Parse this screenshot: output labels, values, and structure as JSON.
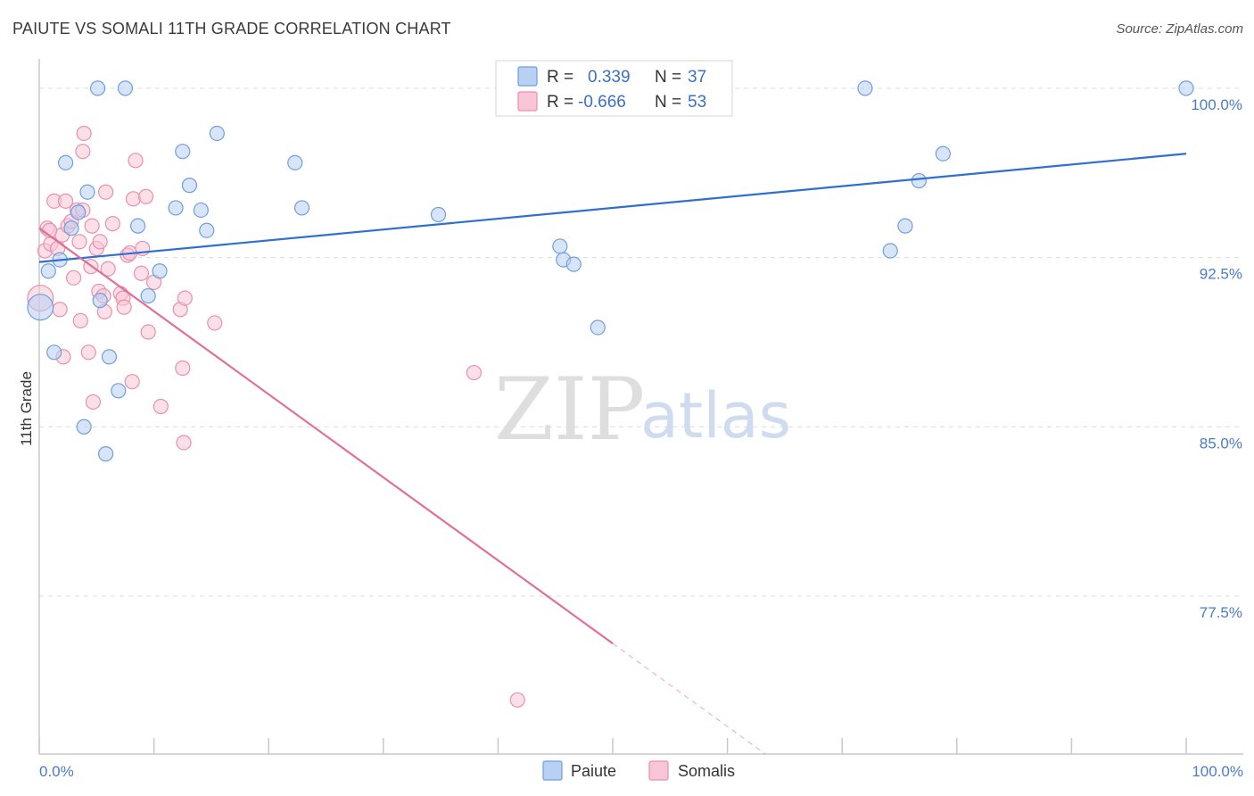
{
  "header": {
    "title": "PAIUTE VS SOMALI 11TH GRADE CORRELATION CHART",
    "source": "Source: ZipAtlas.com"
  },
  "watermark": {
    "zip": "ZIP",
    "atlas": "atlas"
  },
  "colors": {
    "paiute_fill": "#b8d0f2",
    "paiute_stroke": "#6f9fdc",
    "paiute_line": "#2f6fce",
    "somali_fill": "#f8c6d6",
    "somali_stroke": "#ea8fae",
    "somali_line": "#e0709a",
    "grid": "#dcdcdc",
    "axis": "#c8c8c8"
  },
  "legend": {
    "rows": [
      {
        "r_label": "R =",
        "r_value": "0.339",
        "n_label": "N =",
        "n_value": "37"
      },
      {
        "r_label": "R =",
        "r_value": "-0.666",
        "n_label": "N =",
        "n_value": "53"
      }
    ]
  },
  "bottom_legend": [
    "Paiute",
    "Somalis"
  ],
  "chart_data": {
    "type": "scatter",
    "title": "PAIUTE VS SOMALI 11TH GRADE CORRELATION CHART",
    "xlabel": "",
    "ylabel": "11th Grade",
    "xlim": [
      0,
      100
    ],
    "ylim": [
      70.5,
      101.3
    ],
    "y_ticks": [
      {
        "value": 100,
        "label": "100.0%"
      },
      {
        "value": 92.5,
        "label": "92.5%"
      },
      {
        "value": 85,
        "label": "85.0%"
      },
      {
        "value": 77.5,
        "label": "77.5%"
      }
    ],
    "x_tick_labels": {
      "min": "0.0%",
      "max": "100.0%"
    },
    "x_minor_ticks": [
      0,
      10,
      20,
      30,
      40,
      50,
      60,
      70,
      80,
      90,
      100
    ],
    "series": [
      {
        "name": "Paiute",
        "r": 0.339,
        "n": 37,
        "trend": {
          "x0": 0,
          "y0": 92.3,
          "x1": 100,
          "y1": 97.1,
          "solid_until": 100
        },
        "points": [
          [
            0.1,
            90.3,
            1.8
          ],
          [
            0.8,
            91.9,
            1
          ],
          [
            1.3,
            88.3,
            1
          ],
          [
            1.8,
            92.4,
            1
          ],
          [
            2.3,
            96.7,
            1
          ],
          [
            2.8,
            93.8,
            1
          ],
          [
            3.4,
            94.5,
            1
          ],
          [
            3.9,
            85.0,
            1
          ],
          [
            4.2,
            95.4,
            1
          ],
          [
            5.1,
            100.0,
            1
          ],
          [
            5.3,
            90.6,
            1
          ],
          [
            5.8,
            83.8,
            1
          ],
          [
            6.1,
            88.1,
            1
          ],
          [
            6.9,
            86.6,
            1
          ],
          [
            7.5,
            100.0,
            1
          ],
          [
            8.6,
            93.9,
            1
          ],
          [
            9.5,
            90.8,
            1
          ],
          [
            10.5,
            91.9,
            1
          ],
          [
            11.9,
            94.7,
            1
          ],
          [
            12.5,
            97.2,
            1
          ],
          [
            13.1,
            95.7,
            1
          ],
          [
            14.1,
            94.6,
            1
          ],
          [
            14.6,
            93.7,
            1
          ],
          [
            15.5,
            98.0,
            1
          ],
          [
            22.3,
            96.7,
            1
          ],
          [
            22.9,
            94.7,
            1
          ],
          [
            34.8,
            94.4,
            1
          ],
          [
            45.4,
            93.0,
            1
          ],
          [
            45.7,
            92.4,
            1
          ],
          [
            46.6,
            92.2,
            1
          ],
          [
            48.7,
            89.4,
            1
          ],
          [
            72.0,
            100.0,
            1
          ],
          [
            74.2,
            92.8,
            1
          ],
          [
            75.5,
            93.9,
            1
          ],
          [
            76.7,
            95.9,
            1
          ],
          [
            78.8,
            97.1,
            1
          ],
          [
            100.0,
            100.0,
            1
          ]
        ]
      },
      {
        "name": "Somalis",
        "r": -0.666,
        "n": 53,
        "trend": {
          "x0": 0,
          "y0": 93.8,
          "x1": 100,
          "y1": 57.0,
          "solid_until": 50
        },
        "points": [
          [
            0.1,
            90.7,
            1.8
          ],
          [
            0.5,
            92.8,
            1
          ],
          [
            0.7,
            93.8,
            1
          ],
          [
            1.0,
            93.1,
            1
          ],
          [
            1.3,
            95.0,
            1
          ],
          [
            1.6,
            92.9,
            1
          ],
          [
            1.8,
            90.2,
            1
          ],
          [
            2.0,
            93.5,
            1
          ],
          [
            2.1,
            88.1,
            1
          ],
          [
            2.3,
            95.0,
            1
          ],
          [
            2.5,
            93.9,
            1
          ],
          [
            2.8,
            94.1,
            1
          ],
          [
            3.0,
            91.6,
            1
          ],
          [
            3.3,
            94.6,
            1
          ],
          [
            3.5,
            93.2,
            1
          ],
          [
            3.6,
            89.7,
            1
          ],
          [
            3.8,
            97.2,
            1
          ],
          [
            3.8,
            94.6,
            1
          ],
          [
            3.9,
            98.0,
            1
          ],
          [
            4.3,
            88.3,
            1
          ],
          [
            4.5,
            92.1,
            1
          ],
          [
            4.6,
            93.9,
            1
          ],
          [
            4.7,
            86.1,
            1
          ],
          [
            5.0,
            92.9,
            1
          ],
          [
            5.2,
            91.0,
            1
          ],
          [
            5.3,
            93.2,
            1
          ],
          [
            5.6,
            90.8,
            1
          ],
          [
            5.7,
            90.1,
            1
          ],
          [
            5.8,
            95.4,
            1
          ],
          [
            6.0,
            92.0,
            1
          ],
          [
            6.4,
            94.0,
            1
          ],
          [
            7.1,
            90.9,
            1
          ],
          [
            7.3,
            90.7,
            1
          ],
          [
            7.4,
            90.3,
            1
          ],
          [
            7.7,
            92.6,
            1
          ],
          [
            7.9,
            92.7,
            1
          ],
          [
            8.1,
            87.0,
            1
          ],
          [
            8.2,
            95.1,
            1
          ],
          [
            8.4,
            96.8,
            1
          ],
          [
            8.9,
            91.8,
            1
          ],
          [
            9.0,
            92.9,
            1
          ],
          [
            9.3,
            95.2,
            1
          ],
          [
            9.5,
            89.2,
            1
          ],
          [
            10.0,
            91.4,
            1
          ],
          [
            10.6,
            85.9,
            1
          ],
          [
            12.3,
            90.2,
            1
          ],
          [
            12.5,
            87.6,
            1
          ],
          [
            12.6,
            84.3,
            1
          ],
          [
            12.7,
            90.7,
            1
          ],
          [
            15.3,
            89.6,
            1
          ],
          [
            37.9,
            87.4,
            1
          ],
          [
            41.7,
            72.9,
            1
          ],
          [
            0.9,
            93.7,
            1
          ]
        ]
      }
    ]
  }
}
